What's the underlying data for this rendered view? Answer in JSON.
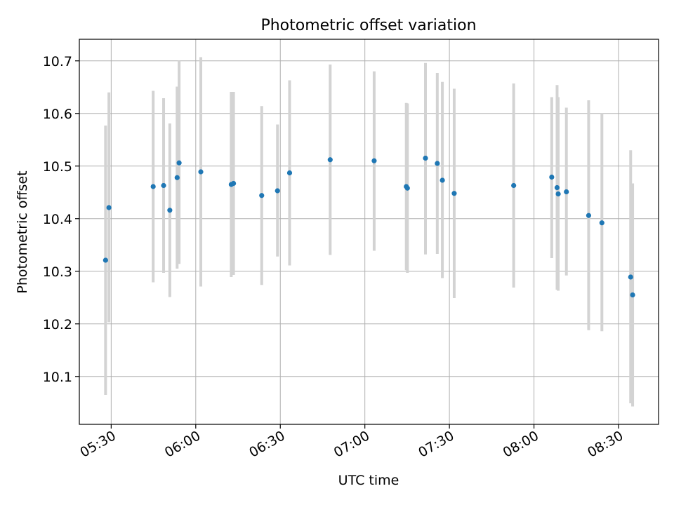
{
  "chart_data": {
    "type": "scatter",
    "title": "Photometric offset variation",
    "xlabel": "UTC time",
    "ylabel": "Photometric offset",
    "grid": true,
    "x_ticks": [
      "05:30",
      "06:00",
      "06:30",
      "07:00",
      "07:30",
      "08:00",
      "08:30"
    ],
    "x_tick_minutes": [
      330,
      360,
      390,
      420,
      450,
      480,
      510
    ],
    "xlim_minutes": [
      318.7,
      524.2
    ],
    "y_ticks": [
      "10.1",
      "10.2",
      "10.3",
      "10.4",
      "10.5",
      "10.6",
      "10.7"
    ],
    "y_tick_values": [
      10.1,
      10.2,
      10.3,
      10.4,
      10.5,
      10.6,
      10.7
    ],
    "ylim": [
      10.009,
      10.741
    ],
    "colors": {
      "point": "#1f77b4",
      "errorbar": "#d3d3d3",
      "grid": "#b0b0b0"
    },
    "points": [
      {
        "t": "05:28",
        "x": 328.0,
        "y": 10.321,
        "lo": 10.065,
        "hi": 10.577
      },
      {
        "t": "05:29",
        "x": 329.2,
        "y": 10.421,
        "lo": 10.203,
        "hi": 10.64
      },
      {
        "t": "05:45",
        "x": 344.9,
        "y": 10.461,
        "lo": 10.279,
        "hi": 10.643
      },
      {
        "t": "05:48",
        "x": 348.6,
        "y": 10.463,
        "lo": 10.297,
        "hi": 10.629
      },
      {
        "t": "05:50",
        "x": 350.8,
        "y": 10.416,
        "lo": 10.251,
        "hi": 10.581
      },
      {
        "t": "05:53",
        "x": 353.4,
        "y": 10.478,
        "lo": 10.305,
        "hi": 10.651
      },
      {
        "t": "05:54",
        "x": 354.1,
        "y": 10.506,
        "lo": 10.314,
        "hi": 10.7
      },
      {
        "t": "06:02",
        "x": 361.8,
        "y": 10.489,
        "lo": 10.271,
        "hi": 10.707
      },
      {
        "t": "06:12",
        "x": 372.6,
        "y": 10.465,
        "lo": 10.289,
        "hi": 10.641
      },
      {
        "t": "06:13",
        "x": 373.4,
        "y": 10.467,
        "lo": 10.293,
        "hi": 10.641
      },
      {
        "t": "06:23",
        "x": 383.4,
        "y": 10.444,
        "lo": 10.274,
        "hi": 10.614
      },
      {
        "t": "06:29",
        "x": 389.0,
        "y": 10.453,
        "lo": 10.328,
        "hi": 10.579
      },
      {
        "t": "06:33",
        "x": 393.3,
        "y": 10.487,
        "lo": 10.311,
        "hi": 10.663
      },
      {
        "t": "06:47",
        "x": 407.7,
        "y": 10.512,
        "lo": 10.331,
        "hi": 10.693
      },
      {
        "t": "07:03",
        "x": 423.3,
        "y": 10.51,
        "lo": 10.339,
        "hi": 10.68
      },
      {
        "t": "07:14",
        "x": 434.7,
        "y": 10.461,
        "lo": 10.302,
        "hi": 10.62
      },
      {
        "t": "07:15",
        "x": 435.1,
        "y": 10.458,
        "lo": 10.297,
        "hi": 10.619
      },
      {
        "t": "07:21",
        "x": 441.5,
        "y": 10.515,
        "lo": 10.332,
        "hi": 10.696
      },
      {
        "t": "07:25",
        "x": 445.7,
        "y": 10.505,
        "lo": 10.333,
        "hi": 10.677
      },
      {
        "t": "07:27",
        "x": 447.5,
        "y": 10.473,
        "lo": 10.287,
        "hi": 10.66
      },
      {
        "t": "07:31",
        "x": 451.7,
        "y": 10.448,
        "lo": 10.249,
        "hi": 10.647
      },
      {
        "t": "07:52",
        "x": 472.8,
        "y": 10.463,
        "lo": 10.269,
        "hi": 10.657
      },
      {
        "t": "08:06",
        "x": 486.3,
        "y": 10.479,
        "lo": 10.325,
        "hi": 10.631
      },
      {
        "t": "08:08",
        "x": 488.2,
        "y": 10.459,
        "lo": 10.265,
        "hi": 10.654
      },
      {
        "t": "08:08",
        "x": 488.6,
        "y": 10.447,
        "lo": 10.263,
        "hi": 10.631
      },
      {
        "t": "08:11",
        "x": 491.5,
        "y": 10.451,
        "lo": 10.292,
        "hi": 10.611
      },
      {
        "t": "08:19",
        "x": 499.4,
        "y": 10.406,
        "lo": 10.188,
        "hi": 10.625
      },
      {
        "t": "08:24",
        "x": 504.1,
        "y": 10.392,
        "lo": 10.186,
        "hi": 10.601
      },
      {
        "t": "08:34",
        "x": 514.3,
        "y": 10.289,
        "lo": 10.049,
        "hi": 10.53
      },
      {
        "t": "08:35",
        "x": 515.0,
        "y": 10.255,
        "lo": 10.043,
        "hi": 10.467
      }
    ]
  }
}
